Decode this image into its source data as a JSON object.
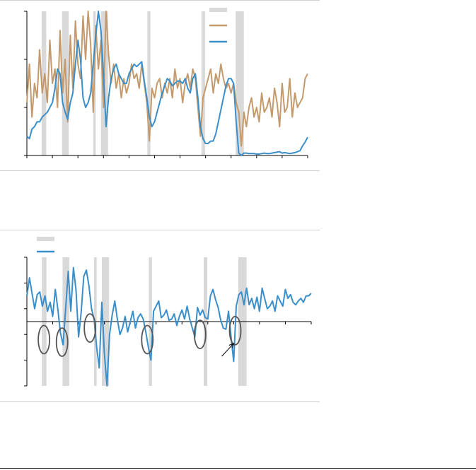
{
  "colors": {
    "recession": "#d9d9d9",
    "series_tan": "#c49a6c",
    "series_blue": "#3a8fcb",
    "axis": "#000000",
    "circle": "#555555"
  },
  "chart_data": [
    {
      "type": "line",
      "grid": false,
      "legend": "top-center",
      "x_range": [
        1967,
        2022
      ],
      "ylim": [
        0,
        3
      ],
      "recessions": [
        [
          1969.9,
          1970.8
        ],
        [
          1973.9,
          1975.2
        ],
        [
          1980.0,
          1980.5
        ],
        [
          1981.5,
          1982.9
        ],
        [
          1990.6,
          1991.2
        ],
        [
          2001.2,
          2001.9
        ],
        [
          2007.9,
          2009.5
        ]
      ],
      "series": [
        {
          "color_key": "series_tan",
          "x": [
            1967.0,
            1967.5,
            1968.0,
            1968.5,
            1969.0,
            1969.5,
            1970.0,
            1970.5,
            1971.0,
            1971.5,
            1972.0,
            1972.5,
            1973.0,
            1973.5,
            1974.0,
            1974.5,
            1975.0,
            1975.5,
            1976.0,
            1976.5,
            1977.0,
            1977.5,
            1978.0,
            1978.5,
            1979.0,
            1979.5,
            1980.0,
            1980.5,
            1981.0,
            1981.5,
            1982.0,
            1982.5,
            1983.0,
            1983.5,
            1984.0,
            1984.5,
            1985.0,
            1985.5,
            1986.0,
            1986.5,
            1987.0,
            1987.5,
            1988.0,
            1988.5,
            1989.0,
            1989.5,
            1990.0,
            1990.5,
            1991.0,
            1991.5,
            1992.0,
            1992.5,
            1993.0,
            1993.5,
            1994.0,
            1994.5,
            1995.0,
            1995.5,
            1996.0,
            1996.5,
            1997.0,
            1997.5,
            1998.0,
            1998.5,
            1999.0,
            1999.5,
            2000.0,
            2000.5,
            2001.0,
            2001.5,
            2002.0,
            2002.5,
            2003.0,
            2003.5,
            2004.0,
            2004.5,
            2005.0,
            2005.5,
            2006.0,
            2006.5,
            2007.0,
            2007.5,
            2008.0,
            2008.5,
            2009.0,
            2009.5,
            2010.0,
            2010.5,
            2011.0,
            2011.5,
            2012.0,
            2012.5,
            2013.0,
            2013.5,
            2014.0,
            2014.5,
            2015.0,
            2015.5,
            2016.0,
            2016.5,
            2017.0,
            2017.5,
            2018.0,
            2018.5,
            2019.0,
            2019.5,
            2020.0,
            2020.5,
            2021.0,
            2021.5,
            2022.0
          ],
          "y": [
            1.1,
            1.9,
            0.8,
            1.5,
            1.2,
            2.2,
            1.3,
            1.7,
            1.1,
            2.4,
            1.5,
            1.8,
            1.0,
            2.6,
            1.3,
            2.0,
            0.7,
            2.5,
            1.4,
            2.8,
            1.9,
            1.6,
            2.9,
            2.0,
            3.0,
            2.3,
            0.9,
            2.7,
            1.8,
            2.4,
            1.0,
            3.0,
            2.1,
            1.5,
            1.9,
            1.4,
            1.7,
            1.2,
            1.6,
            1.3,
            1.5,
            1.9,
            1.6,
            1.7,
            1.4,
            1.9,
            1.5,
            1.1,
            0.3,
            1.4,
            1.2,
            1.5,
            1.6,
            1.2,
            1.5,
            1.3,
            1.6,
            1.2,
            1.8,
            1.4,
            1.6,
            1.1,
            1.5,
            1.7,
            1.4,
            1.8,
            1.6,
            1.0,
            0.4,
            1.2,
            1.4,
            1.6,
            1.8,
            1.3,
            1.7,
            1.5,
            1.9,
            1.6,
            1.4,
            1.5,
            1.3,
            1.5,
            1.1,
            0.9,
            0.2,
            0.9,
            0.6,
            1.0,
            1.2,
            0.8,
            1.0,
            0.7,
            1.3,
            0.9,
            1.0,
            1.2,
            0.8,
            1.4,
            1.1,
            0.6,
            1.5,
            0.9,
            1.0,
            1.6,
            0.8,
            1.3,
            1.0,
            1.1,
            1.2,
            1.6,
            1.7
          ]
        },
        {
          "color_key": "series_blue",
          "x": [
            1967.0,
            1967.5,
            1968.0,
            1968.5,
            1969.0,
            1969.5,
            1970.0,
            1970.5,
            1971.0,
            1971.5,
            1972.0,
            1972.5,
            1973.0,
            1973.5,
            1974.0,
            1974.5,
            1975.0,
            1975.5,
            1976.0,
            1976.5,
            1977.0,
            1977.5,
            1978.0,
            1978.5,
            1979.0,
            1979.5,
            1980.0,
            1980.5,
            1981.0,
            1981.5,
            1982.0,
            1982.5,
            1983.0,
            1983.5,
            1984.0,
            1984.5,
            1985.0,
            1985.5,
            1986.0,
            1986.5,
            1987.0,
            1987.5,
            1988.0,
            1988.5,
            1989.0,
            1989.5,
            1990.0,
            1990.5,
            1991.0,
            1991.5,
            1992.0,
            1992.5,
            1993.0,
            1993.5,
            1994.0,
            1994.5,
            1995.0,
            1995.5,
            1996.0,
            1996.5,
            1997.0,
            1997.5,
            1998.0,
            1998.5,
            1999.0,
            1999.5,
            2000.0,
            2000.5,
            2001.0,
            2001.5,
            2002.0,
            2002.5,
            2003.0,
            2003.5,
            2004.0,
            2004.5,
            2005.0,
            2005.5,
            2006.0,
            2006.5,
            2007.0,
            2007.5,
            2008.0,
            2008.5,
            2009.0,
            2009.5,
            2010.0,
            2010.5,
            2011.0,
            2011.5,
            2012.0,
            2012.5,
            2013.0,
            2013.5,
            2014.0,
            2014.5,
            2015.0,
            2015.5,
            2016.0,
            2016.5,
            2017.0,
            2017.5,
            2018.0,
            2018.5,
            2019.0,
            2019.5,
            2020.0,
            2020.5,
            2021.0,
            2021.5,
            2022.0
          ],
          "y": [
            0.4,
            0.35,
            0.55,
            0.6,
            0.7,
            0.7,
            0.8,
            0.85,
            0.9,
            1.0,
            1.1,
            1.4,
            1.8,
            1.7,
            1.1,
            0.9,
            0.75,
            1.1,
            1.3,
            1.9,
            2.4,
            2.0,
            1.2,
            1.0,
            1.1,
            1.3,
            1.9,
            2.5,
            3.0,
            2.6,
            1.7,
            0.6,
            1.2,
            1.6,
            1.8,
            1.9,
            1.7,
            1.6,
            1.5,
            1.5,
            1.7,
            1.8,
            1.9,
            1.85,
            1.9,
            1.95,
            1.55,
            1.2,
            0.8,
            0.6,
            0.7,
            0.9,
            1.1,
            1.3,
            1.45,
            1.6,
            1.55,
            1.45,
            1.5,
            1.55,
            1.55,
            1.5,
            1.6,
            1.4,
            1.3,
            1.6,
            1.7,
            1.2,
            0.6,
            0.35,
            0.25,
            0.25,
            0.3,
            0.3,
            0.45,
            0.7,
            0.95,
            1.2,
            1.45,
            1.6,
            1.6,
            1.5,
            0.7,
            0.05,
            0.0,
            0.05,
            0.05,
            0.04,
            0.04,
            0.04,
            0.03,
            0.03,
            0.04,
            0.05,
            0.04,
            0.04,
            0.05,
            0.06,
            0.07,
            0.08,
            0.05,
            0.06,
            0.05,
            0.04,
            0.05,
            0.06,
            0.08,
            0.1,
            0.2,
            0.28,
            0.38
          ]
        }
      ]
    },
    {
      "type": "line",
      "grid": false,
      "legend": "top-left",
      "x_range": [
        1967,
        2022
      ],
      "ylim": [
        -5,
        5
      ],
      "zero_line": 0,
      "recessions": [
        [
          1969.9,
          1970.8
        ],
        [
          1973.9,
          1975.2
        ],
        [
          1980.0,
          1980.5
        ],
        [
          1981.5,
          1982.9
        ],
        [
          1990.6,
          1991.2
        ],
        [
          2001.2,
          2001.9
        ],
        [
          2007.9,
          2009.5
        ]
      ],
      "highlight_circles": [
        {
          "x": 1970.3,
          "y": -1.4
        },
        {
          "x": 1973.8,
          "y": -1.6
        },
        {
          "x": 1979.2,
          "y": -0.5
        },
        {
          "x": 1990.3,
          "y": -1.4
        },
        {
          "x": 2000.5,
          "y": -1.0
        },
        {
          "x": 2007.3,
          "y": -0.7
        }
      ],
      "arrow": {
        "from": [
          2004.7,
          -2.7
        ],
        "to": [
          2007.0,
          -1.7
        ]
      },
      "series": [
        {
          "color_key": "series_blue",
          "x": [
            1967.0,
            1967.5,
            1968.0,
            1968.5,
            1969.0,
            1969.5,
            1970.0,
            1970.5,
            1971.0,
            1971.5,
            1972.0,
            1972.5,
            1973.0,
            1973.5,
            1974.0,
            1974.5,
            1975.0,
            1975.5,
            1976.0,
            1976.5,
            1977.0,
            1977.5,
            1978.0,
            1978.5,
            1979.0,
            1979.5,
            1980.0,
            1980.5,
            1981.0,
            1981.5,
            1982.0,
            1982.5,
            1983.0,
            1983.5,
            1984.0,
            1984.5,
            1985.0,
            1985.5,
            1986.0,
            1986.5,
            1987.0,
            1987.5,
            1988.0,
            1988.5,
            1989.0,
            1989.5,
            1990.0,
            1990.5,
            1991.0,
            1991.5,
            1992.0,
            1992.5,
            1993.0,
            1993.5,
            1994.0,
            1994.5,
            1995.0,
            1995.5,
            1996.0,
            1996.5,
            1997.0,
            1997.5,
            1998.0,
            1998.5,
            1999.0,
            1999.5,
            2000.0,
            2000.5,
            2001.0,
            2001.5,
            2002.0,
            2002.5,
            2003.0,
            2003.5,
            2004.0,
            2004.5,
            2005.0,
            2005.5,
            2006.0,
            2006.5,
            2007.0,
            2007.5,
            2008.0,
            2008.5,
            2009.0,
            2009.5,
            2010.0,
            2010.5,
            2011.0,
            2011.5,
            2012.0,
            2012.5,
            2013.0,
            2013.5,
            2014.0,
            2014.5,
            2015.0,
            2015.5,
            2016.0,
            2016.5,
            2017.0,
            2017.5,
            2018.0,
            2018.5,
            2019.0,
            2019.5,
            2020.0,
            2020.5,
            2021.0,
            2021.5,
            2022.0
          ],
          "y": [
            2.0,
            3.4,
            2.2,
            1.0,
            2.1,
            2.3,
            1.2,
            2.0,
            0.8,
            1.5,
            0.4,
            2.5,
            0.9,
            -0.9,
            -1.8,
            1.0,
            3.9,
            0.8,
            4.2,
            2.5,
            -1.2,
            0.7,
            3.5,
            4.0,
            2.8,
            1.0,
            0.2,
            -2.0,
            -3.6,
            1.5,
            -2.5,
            -5.0,
            -1.0,
            0.5,
            1.6,
            0.2,
            -1.0,
            -0.5,
            0.4,
            -0.8,
            0.0,
            0.8,
            -0.5,
            0.3,
            0.6,
            0.2,
            -0.8,
            -2.0,
            -3.0,
            0.8,
            1.2,
            1.6,
            0.3,
            0.5,
            0.9,
            0.1,
            0.2,
            0.6,
            -0.3,
            0.4,
            0.9,
            0.2,
            1.2,
            0.2,
            -0.5,
            -1.2,
            1.1,
            0.5,
            0.9,
            0.3,
            0.2,
            2.0,
            2.5,
            1.7,
            1.1,
            0.1,
            -0.5,
            -0.6,
            0.8,
            -1.2,
            -3.1,
            1.2,
            2.1,
            2.3,
            1.3,
            2.6,
            1.3,
            1.8,
            1.0,
            1.9,
            0.8,
            2.6,
            1.8,
            1.0,
            1.2,
            1.6,
            0.8,
            2.0,
            1.6,
            1.2,
            2.5,
            1.8,
            2.1,
            1.5,
            1.3,
            1.6,
            1.8,
            1.5,
            2.0,
            2.0,
            2.2
          ]
        }
      ]
    }
  ]
}
